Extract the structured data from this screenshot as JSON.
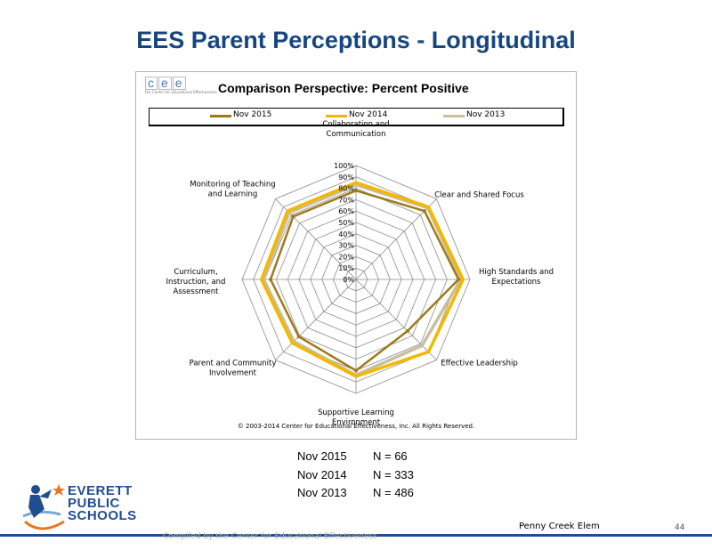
{
  "slide": {
    "title": "EES Parent Perceptions - Longitudinal",
    "school": "Penny Creek Elem",
    "page_number": "44",
    "compiled_by": "Compiled by the Center for Educational Effectiveness",
    "logo": {
      "line1": "EVERETT",
      "line2": "PUBLIC",
      "line3": "SCHOOLS"
    },
    "cee_logo": {
      "letters": [
        "c",
        "e",
        "e"
      ],
      "subtitle": "the Center for Educational Effectiveness"
    },
    "n_counts": [
      {
        "label": "Nov 2015",
        "n": "N = 66"
      },
      {
        "label": "Nov 2014",
        "n": "N = 333"
      },
      {
        "label": "Nov 2013",
        "n": "N = 486"
      }
    ]
  },
  "chart_data": {
    "type": "radar",
    "title": "Comparison Perspective: Percent Positive",
    "copyright": "© 2003-2014 Center for Educational Effectiveness, Inc. All Rights Reserved.",
    "legend_position": "top",
    "grid": true,
    "rlim": [
      0,
      100
    ],
    "ticks": [
      "0%",
      "10%",
      "20%",
      "30%",
      "40%",
      "50%",
      "60%",
      "70%",
      "80%",
      "90%",
      "100%"
    ],
    "categories": [
      "Collaboration and Communication",
      "Clear and Shared Focus",
      "High Standards and Expectations",
      "Effective Leadership",
      "Supportive Learning Environment",
      "Parent and Community Involvement",
      "Curriculum, Instruction, and Assessment",
      "Monitoring of Teaching and Learning"
    ],
    "series": [
      {
        "name": "Nov 2015",
        "color": "#9c7a1c",
        "values": [
          78,
          85,
          90,
          64,
          80,
          71,
          75,
          78
        ]
      },
      {
        "name": "Nov 2014",
        "color": "#f2b800",
        "values": [
          85,
          90,
          94,
          90,
          85,
          79,
          83,
          85
        ]
      },
      {
        "name": "Nov 2013",
        "color": "#c8bf9e",
        "values": [
          83,
          89,
          92,
          82,
          84,
          77,
          81,
          83
        ]
      }
    ]
  }
}
